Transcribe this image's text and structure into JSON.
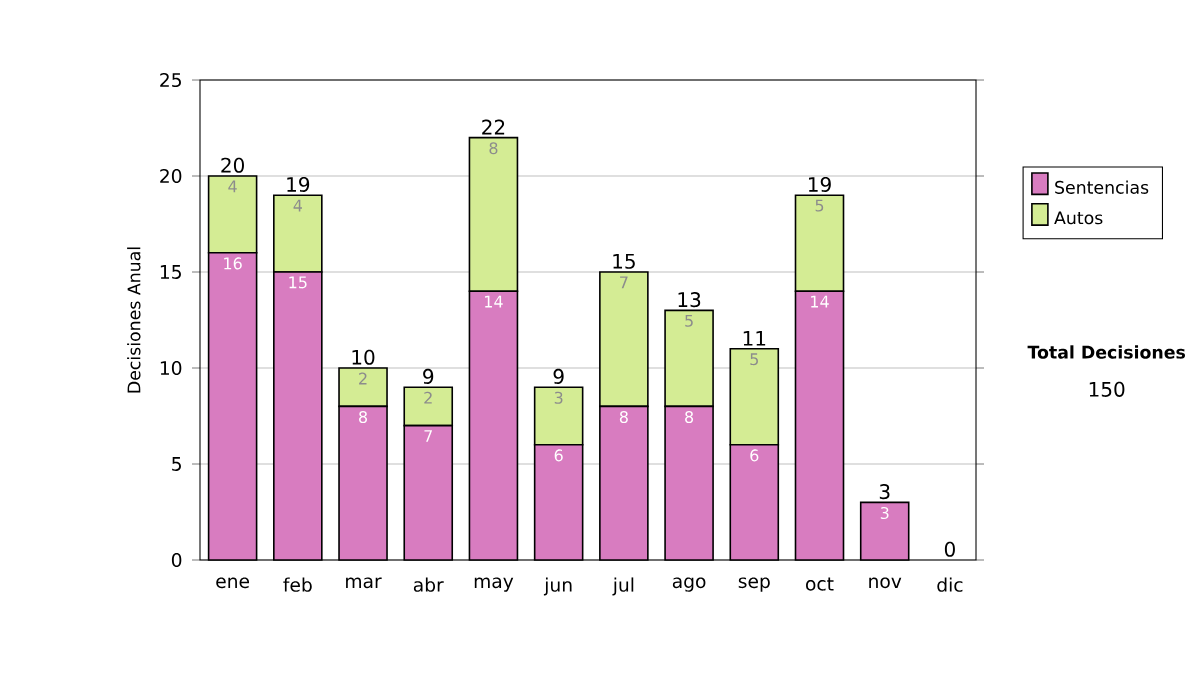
{
  "chart_data": {
    "type": "bar",
    "stacked": true,
    "ylabel": "Decisiones Anual",
    "categories": [
      "ene",
      "feb",
      "mar",
      "abr",
      "may",
      "jun",
      "jul",
      "ago",
      "sep",
      "oct",
      "nov",
      "dic"
    ],
    "series": [
      {
        "name": "Sentencias",
        "color": "#d87cc0",
        "values": [
          16,
          15,
          8,
          7,
          14,
          6,
          8,
          8,
          6,
          14,
          3,
          0
        ],
        "value_labels": [
          "16",
          "15",
          "8",
          "7",
          "14",
          "6",
          "8",
          "8",
          "6",
          "14",
          "3",
          null
        ]
      },
      {
        "name": "Autos",
        "color": "#d4ec94",
        "values": [
          4,
          4,
          2,
          2,
          8,
          3,
          7,
          5,
          5,
          5,
          0,
          0
        ],
        "value_labels": [
          "4",
          "4",
          "2",
          "2",
          "8",
          "3",
          "7",
          "5",
          "5",
          "5",
          null,
          null
        ]
      }
    ],
    "totals": [
      "20",
      "19",
      "10",
      "9",
      "22",
      "9",
      "15",
      "13",
      "11",
      "19",
      "3",
      "0"
    ],
    "ylim": [
      0,
      25
    ],
    "yticks": [
      0,
      5,
      10,
      15,
      20,
      25
    ],
    "grid": "y",
    "legend": "right",
    "annotations": [
      "Total Decisiones",
      "150"
    ]
  }
}
